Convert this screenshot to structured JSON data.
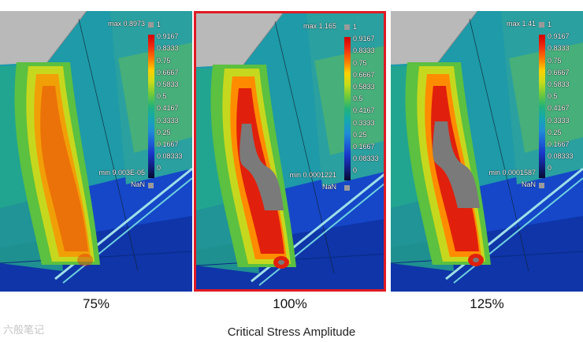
{
  "colorbar_ticks": [
    "1",
    "0.9167",
    "0.8333",
    "0.75",
    "0.6667",
    "0.5833",
    "0.5",
    "0.4167",
    "0.3333",
    "0.25",
    "0.1667",
    "0.08333",
    "0"
  ],
  "nan_label": "NaN",
  "panels": [
    {
      "max": "max 0.8973",
      "min": "min 9.003E-05",
      "percent": "75%",
      "highlighted": false
    },
    {
      "max": "max 1.165",
      "min": "min 0.0001221",
      "percent": "100%",
      "highlighted": true
    },
    {
      "max": "max 1.41",
      "min": "min 0.0001587",
      "percent": "125%",
      "highlighted": false
    }
  ],
  "caption": "Critical Stress Amplitude",
  "watermark": "六般笔记",
  "colors": {
    "highlight_border": "#e01b24"
  }
}
